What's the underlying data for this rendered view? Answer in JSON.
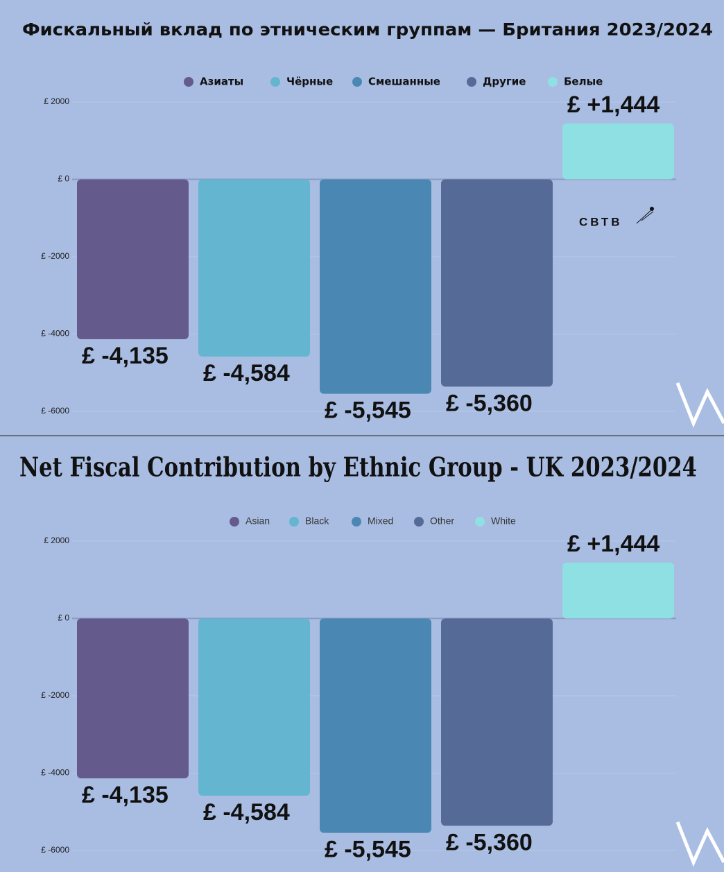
{
  "chart_data": [
    {
      "type": "bar",
      "title": "Фискальный вклад по этническим группам — Британия 2023/2024",
      "categories": [
        "Азиаты",
        "Чёрные",
        "Смешанные",
        "Другие",
        "Белые"
      ],
      "values": [
        -4135,
        -4584,
        -5545,
        -5360,
        1444
      ],
      "value_labels": [
        "£ -4,135",
        "£ -4,584",
        "£ -5,545",
        "£ -5,360",
        "£ +1,444"
      ],
      "colors": [
        "#655a8c",
        "#64b5d0",
        "#4a88b3",
        "#566a97",
        "#8fe0e2"
      ],
      "ylim": [
        -6000,
        2000
      ],
      "yticks": [
        {
          "value": 2000,
          "label": "£ 2000"
        },
        {
          "value": 0,
          "label": "£ 0"
        },
        {
          "value": -2000,
          "label": "£ -2000"
        },
        {
          "value": -4000,
          "label": "£ -4000"
        },
        {
          "value": -6000,
          "label": "£ -6000"
        }
      ],
      "grid": true,
      "legend": "top",
      "annotations": [
        "СВТВ"
      ]
    },
    {
      "type": "bar",
      "title": "Net Fiscal Contribution by Ethnic Group - UK 2023/2024",
      "categories": [
        "Asian",
        "Black",
        "Mixed",
        "Other",
        "White"
      ],
      "values": [
        -4135,
        -4584,
        -5545,
        -5360,
        1444
      ],
      "value_labels": [
        "£ -4,135",
        "£ -4,584",
        "£ -5,545",
        "£ -5,360",
        "£ +1,444"
      ],
      "colors": [
        "#655a8c",
        "#64b5d0",
        "#4a88b3",
        "#566a97",
        "#8fe0e2"
      ],
      "ylim": [
        -6000,
        2000
      ],
      "yticks": [
        {
          "value": 2000,
          "label": "£ 2000"
        },
        {
          "value": 0,
          "label": "£ 0"
        },
        {
          "value": -2000,
          "label": "£ -2000"
        },
        {
          "value": -4000,
          "label": "£ -4000"
        },
        {
          "value": -6000,
          "label": "£ -6000"
        }
      ],
      "grid": true,
      "legend": "top"
    }
  ]
}
